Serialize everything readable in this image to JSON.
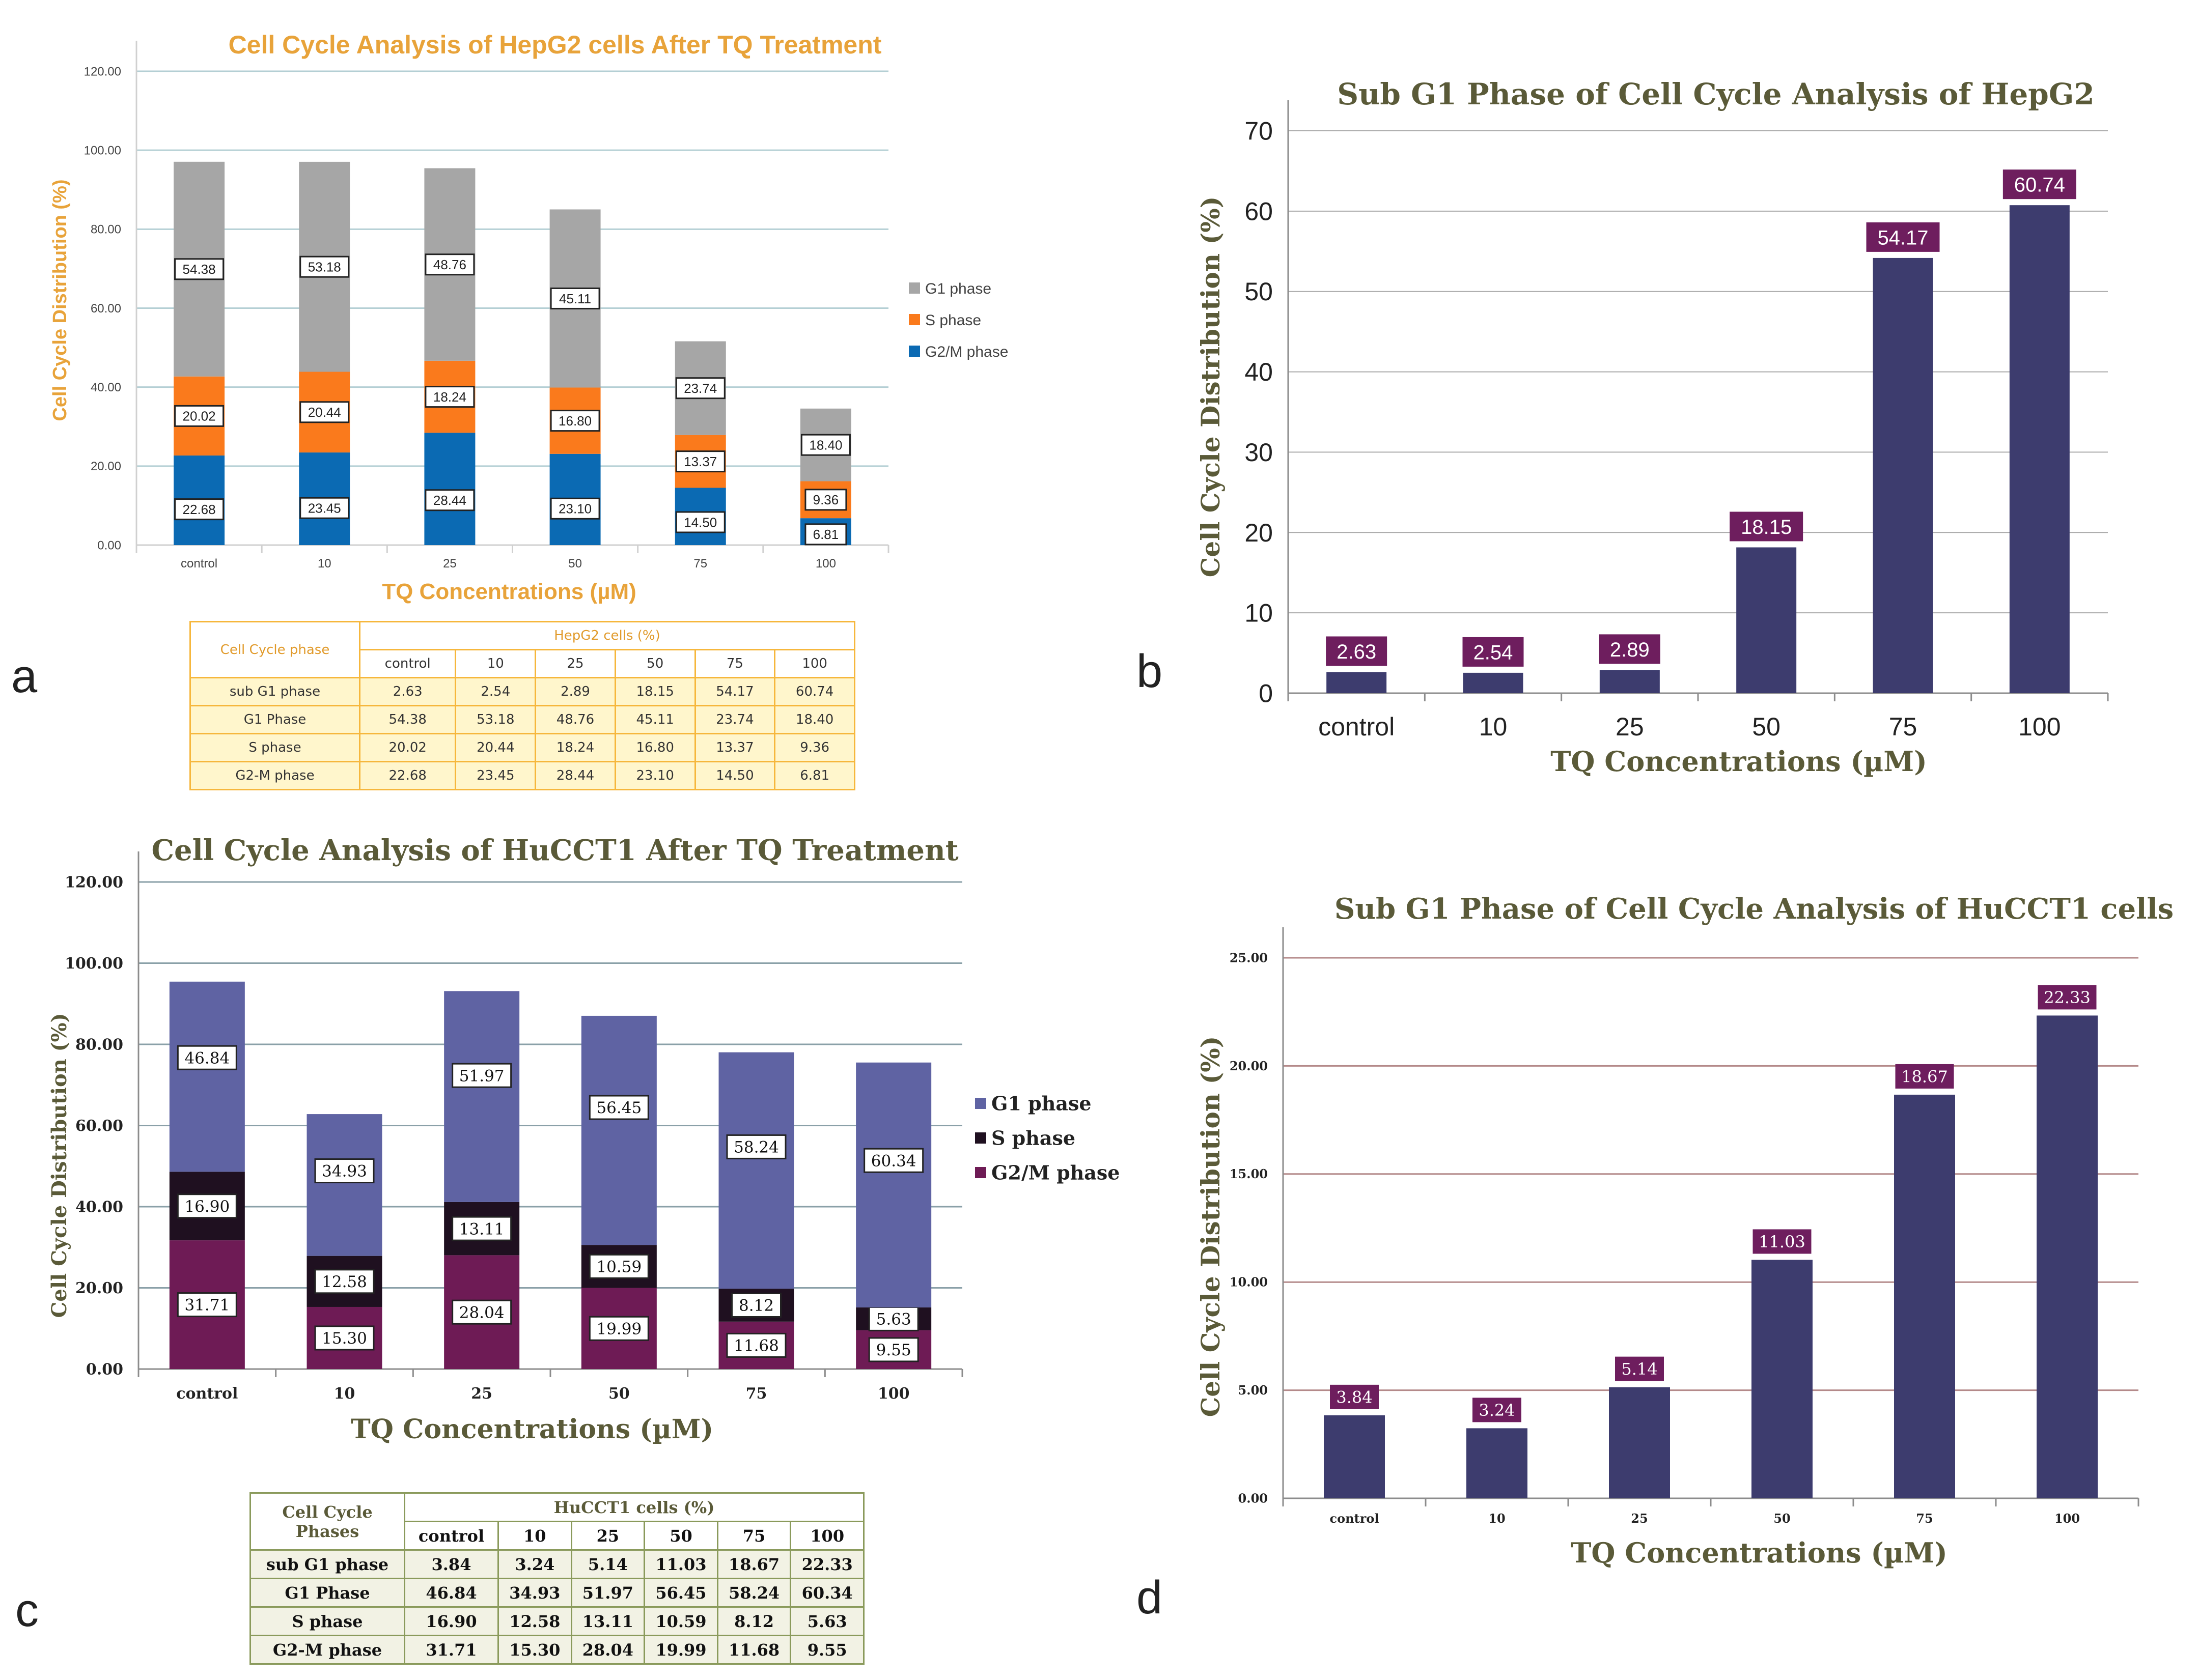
{
  "panel_letters": {
    "a": "a",
    "b": "b",
    "c": "c",
    "d": "d"
  },
  "colors": {
    "grey": "#a6a6a6",
    "orange": "#fa7a1c",
    "blue": "#0b6ab3",
    "title_orange": "#e8a33a",
    "slate": "#5f63a3",
    "black": "#1f1020",
    "plum": "#6e1b55",
    "navy": "#3d3c6e",
    "label_purple": "#6e1e5e",
    "olive": "#5a5a38"
  },
  "chart_data": [
    {
      "id": "a",
      "type": "bar",
      "stacked": true,
      "title": "Cell Cycle Analysis of HepG2 cells After TQ Treatment",
      "xlabel": "TQ Concentrations (µM)",
      "ylabel": "Cell Cycle Distribution (%)",
      "ylim": [
        0,
        120
      ],
      "yticks": [
        "0.00",
        "20.00",
        "40.00",
        "60.00",
        "80.00",
        "100.00",
        "120.00"
      ],
      "categories": [
        "control",
        "10",
        "25",
        "50",
        "75",
        "100"
      ],
      "series": [
        {
          "name": "G2/M phase",
          "values": [
            22.68,
            23.45,
            28.44,
            23.1,
            14.5,
            6.81
          ],
          "labels": [
            "22.68",
            "23.45",
            "28.44",
            "23.10",
            "14.50",
            "6.81"
          ],
          "color": "#0b6ab3"
        },
        {
          "name": "S phase",
          "values": [
            20.02,
            20.44,
            18.24,
            16.8,
            13.37,
            9.36
          ],
          "labels": [
            "20.02",
            "20.44",
            "18.24",
            "16.80",
            "13.37",
            "9.36"
          ],
          "color": "#fa7a1c"
        },
        {
          "name": "G1 phase",
          "values": [
            54.38,
            53.18,
            48.76,
            45.11,
            23.74,
            18.4
          ],
          "labels": [
            "54.38",
            "53.18",
            "48.76",
            "45.11",
            "23.74",
            "18.40"
          ],
          "color": "#a6a6a6"
        }
      ],
      "legend_order": [
        "G1 phase",
        "S phase",
        "G2/M phase"
      ],
      "legend": "right",
      "grid": true
    },
    {
      "id": "b",
      "type": "bar",
      "title": "Sub G1 Phase of Cell Cycle Analysis of HepG2",
      "xlabel": "TQ Concentrations (µM)",
      "ylabel": "Cell Cycle Distribution (%)",
      "ylim": [
        0,
        70
      ],
      "yticks": [
        "0",
        "10",
        "20",
        "30",
        "40",
        "50",
        "60",
        "70"
      ],
      "categories": [
        "control",
        "10",
        "25",
        "50",
        "75",
        "100"
      ],
      "values": [
        2.63,
        2.54,
        2.89,
        18.15,
        54.17,
        60.74
      ],
      "labels": [
        "2.63",
        "2.54",
        "2.89",
        "18.15",
        "54.17",
        "60.74"
      ],
      "grid": true
    },
    {
      "id": "c",
      "type": "bar",
      "stacked": true,
      "title": "Cell Cycle Analysis of HuCCT1 After TQ Treatment",
      "xlabel": "TQ Concentrations (µM)",
      "ylabel": "Cell Cycle Distribution (%)",
      "ylim": [
        0,
        120
      ],
      "yticks": [
        "0.00",
        "20.00",
        "40.00",
        "60.00",
        "80.00",
        "100.00",
        "120.00"
      ],
      "categories": [
        "control",
        "10",
        "25",
        "50",
        "75",
        "100"
      ],
      "series": [
        {
          "name": "G2/M phase",
          "values": [
            31.71,
            15.3,
            28.04,
            19.99,
            11.68,
            9.55
          ],
          "labels": [
            "31.71",
            "15.30",
            "28.04",
            "19.99",
            "11.68",
            "9.55"
          ],
          "color": "#6e1b55"
        },
        {
          "name": "S phase",
          "values": [
            16.9,
            12.58,
            13.11,
            10.59,
            8.12,
            5.63
          ],
          "labels": [
            "16.90",
            "12.58",
            "13.11",
            "10.59",
            "8.12",
            "5.63"
          ],
          "color": "#1f1020"
        },
        {
          "name": "G1 phase",
          "values": [
            46.84,
            34.93,
            51.97,
            56.45,
            58.24,
            60.34
          ],
          "labels": [
            "46.84",
            "34.93",
            "51.97",
            "56.45",
            "58.24",
            "60.34"
          ],
          "color": "#5f63a3"
        }
      ],
      "legend_order": [
        "G1 phase",
        "S phase",
        "G2/M phase"
      ],
      "legend": "right",
      "grid": true
    },
    {
      "id": "d",
      "type": "bar",
      "title": "Sub G1 Phase of Cell Cycle Analysis of HuCCT1 cells",
      "xlabel": "TQ Concentrations (µM)",
      "ylabel": "Cell Cycle Distribution (%)",
      "ylim": [
        0,
        25
      ],
      "yticks": [
        "0.00",
        "5.00",
        "10.00",
        "15.00",
        "20.00",
        "25.00"
      ],
      "categories": [
        "control",
        "10",
        "25",
        "50",
        "75",
        "100"
      ],
      "values": [
        3.84,
        3.24,
        5.14,
        11.03,
        18.67,
        22.33
      ],
      "labels": [
        "3.84",
        "3.24",
        "5.14",
        "11.03",
        "18.67",
        "22.33"
      ],
      "grid": true
    }
  ],
  "table_a": {
    "corner": "Cell Cycle phase",
    "group_header": "HepG2 cells (%)",
    "columns": [
      "control",
      "10",
      "25",
      "50",
      "75",
      "100"
    ],
    "rows": [
      {
        "label": "sub G1 phase",
        "cells": [
          "2.63",
          "2.54",
          "2.89",
          "18.15",
          "54.17",
          "60.74"
        ]
      },
      {
        "label": "G1 Phase",
        "cells": [
          "54.38",
          "53.18",
          "48.76",
          "45.11",
          "23.74",
          "18.40"
        ]
      },
      {
        "label": "S phase",
        "cells": [
          "20.02",
          "20.44",
          "18.24",
          "16.80",
          "13.37",
          "9.36"
        ]
      },
      {
        "label": "G2-M phase",
        "cells": [
          "22.68",
          "23.45",
          "28.44",
          "23.10",
          "14.50",
          "6.81"
        ]
      }
    ]
  },
  "table_c": {
    "corner_line1": "Cell Cycle",
    "corner_line2": "Phases",
    "group_header": "HuCCT1 cells (%)",
    "columns": [
      "control",
      "10",
      "25",
      "50",
      "75",
      "100"
    ],
    "rows": [
      {
        "label": "sub G1 phase",
        "cells": [
          "3.84",
          "3.24",
          "5.14",
          "11.03",
          "18.67",
          "22.33"
        ]
      },
      {
        "label": "G1 Phase",
        "cells": [
          "46.84",
          "34.93",
          "51.97",
          "56.45",
          "58.24",
          "60.34"
        ]
      },
      {
        "label": "S phase",
        "cells": [
          "16.90",
          "12.58",
          "13.11",
          "10.59",
          "8.12",
          "5.63"
        ]
      },
      {
        "label": "G2-M phase",
        "cells": [
          "31.71",
          "15.30",
          "28.04",
          "19.99",
          "11.68",
          "9.55"
        ]
      }
    ]
  }
}
